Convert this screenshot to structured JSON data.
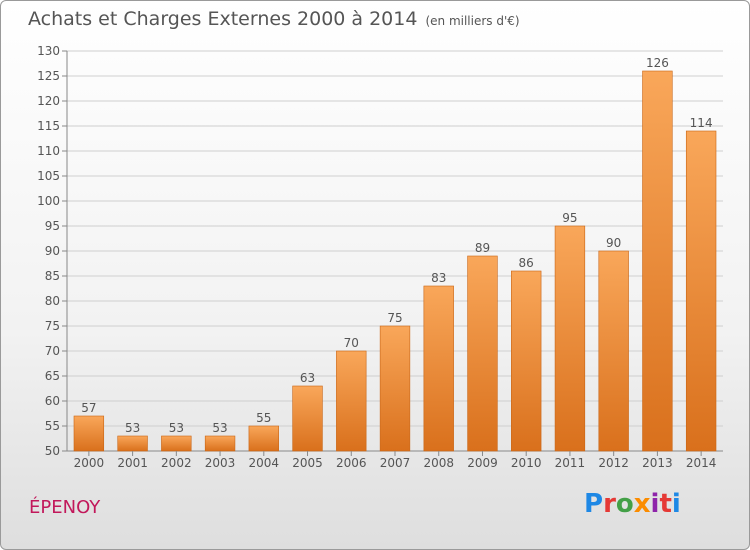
{
  "header": {
    "title": "Achats et Charges Externes 2000 à 2014",
    "unit": "(en milliers d'€)"
  },
  "commune": "ÉPENOY",
  "logo": {
    "text": "Proxiti",
    "letter_colors": [
      "#1e88e5",
      "#e53935",
      "#43a047",
      "#fb8c00",
      "#8e24aa",
      "#e53935",
      "#1e88e5"
    ]
  },
  "colors": {
    "bar_top": "#f9a75a",
    "bar_bottom": "#d9701c",
    "bar_stroke": "#c96515",
    "grid": "#cfcfcf",
    "axis_text": "#555555"
  },
  "chart_data": {
    "type": "bar",
    "title": "Achats et Charges Externes 2000 à 2014",
    "xlabel": "",
    "ylabel": "",
    "categories": [
      "2000",
      "2001",
      "2002",
      "2003",
      "2004",
      "2005",
      "2006",
      "2007",
      "2008",
      "2009",
      "2010",
      "2011",
      "2012",
      "2013",
      "2014"
    ],
    "values": [
      57,
      53,
      53,
      53,
      55,
      63,
      70,
      75,
      83,
      89,
      86,
      95,
      90,
      126,
      114
    ],
    "ylim": [
      50,
      130
    ],
    "ytick_step": 5,
    "grid": true
  }
}
